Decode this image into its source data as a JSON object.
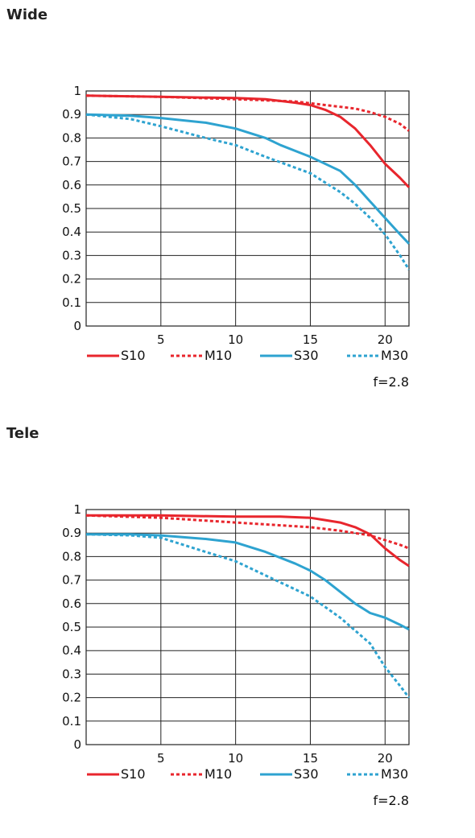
{
  "chart_data": [
    {
      "type": "line",
      "title": "Wide",
      "xlim": [
        0,
        21.6
      ],
      "ylim": [
        0,
        1
      ],
      "xticks": [
        "5",
        "10",
        "15",
        "20"
      ],
      "yticks": [
        "1",
        "0.9",
        "0.8",
        "0.7",
        "0.6",
        "0.5",
        "0.4",
        "0.3",
        "0.2",
        "0.1",
        "0"
      ],
      "grid": true,
      "legend_position": "bottom",
      "annotation": "f=2.8",
      "series": [
        {
          "name": "S10",
          "color": "#e8262d",
          "style": "solid",
          "x": [
            0,
            5,
            10,
            12,
            14,
            15,
            16,
            17,
            18,
            19,
            20,
            21,
            21.6
          ],
          "y": [
            0.98,
            0.975,
            0.97,
            0.965,
            0.95,
            0.94,
            0.92,
            0.89,
            0.84,
            0.77,
            0.69,
            0.63,
            0.59
          ]
        },
        {
          "name": "M10",
          "color": "#e8262d",
          "style": "dashed",
          "x": [
            0,
            5,
            10,
            14,
            16,
            18,
            19,
            20,
            21,
            21.6
          ],
          "y": [
            0.98,
            0.975,
            0.965,
            0.955,
            0.94,
            0.925,
            0.91,
            0.89,
            0.86,
            0.83
          ]
        },
        {
          "name": "S30",
          "color": "#2ea3d0",
          "style": "solid",
          "x": [
            0,
            3,
            5,
            8,
            10,
            12,
            13,
            15,
            17,
            18,
            19,
            20,
            21,
            21.6
          ],
          "y": [
            0.9,
            0.895,
            0.885,
            0.865,
            0.84,
            0.8,
            0.77,
            0.72,
            0.66,
            0.6,
            0.53,
            0.46,
            0.39,
            0.35
          ]
        },
        {
          "name": "M30",
          "color": "#2ea3d0",
          "style": "dashed",
          "x": [
            0,
            3,
            5,
            8,
            10,
            12,
            15,
            17,
            18,
            19,
            20,
            21,
            21.6
          ],
          "y": [
            0.9,
            0.88,
            0.85,
            0.8,
            0.77,
            0.72,
            0.65,
            0.57,
            0.52,
            0.46,
            0.39,
            0.3,
            0.24
          ]
        }
      ]
    },
    {
      "type": "line",
      "title": "Tele",
      "xlim": [
        0,
        21.6
      ],
      "ylim": [
        0,
        1
      ],
      "xticks": [
        "5",
        "10",
        "15",
        "20"
      ],
      "yticks": [
        "1",
        "0.9",
        "0.8",
        "0.7",
        "0.6",
        "0.5",
        "0.4",
        "0.3",
        "0.2",
        "0.1",
        "0"
      ],
      "grid": true,
      "legend_position": "bottom",
      "annotation": "f=2.8",
      "series": [
        {
          "name": "S10",
          "color": "#e8262d",
          "style": "solid",
          "x": [
            0,
            5,
            10,
            13,
            15,
            16,
            17,
            18,
            19,
            20,
            21,
            21.6
          ],
          "y": [
            0.975,
            0.975,
            0.97,
            0.97,
            0.965,
            0.955,
            0.945,
            0.925,
            0.895,
            0.835,
            0.785,
            0.76
          ]
        },
        {
          "name": "M10",
          "color": "#e8262d",
          "style": "dashed",
          "x": [
            0,
            5,
            10,
            15,
            17,
            19,
            20,
            21,
            21.6
          ],
          "y": [
            0.975,
            0.965,
            0.945,
            0.925,
            0.91,
            0.89,
            0.87,
            0.85,
            0.835
          ]
        },
        {
          "name": "S30",
          "color": "#2ea3d0",
          "style": "solid",
          "x": [
            0,
            3,
            5,
            8,
            10,
            12,
            14,
            15,
            16,
            17,
            18,
            19,
            20,
            21,
            21.6
          ],
          "y": [
            0.895,
            0.895,
            0.89,
            0.875,
            0.86,
            0.82,
            0.77,
            0.74,
            0.7,
            0.65,
            0.6,
            0.56,
            0.54,
            0.51,
            0.49
          ]
        },
        {
          "name": "M30",
          "color": "#2ea3d0",
          "style": "dashed",
          "x": [
            0,
            3,
            5,
            8,
            10,
            12,
            15,
            17,
            19,
            20,
            21,
            21.6
          ],
          "y": [
            0.895,
            0.89,
            0.88,
            0.82,
            0.78,
            0.72,
            0.63,
            0.54,
            0.43,
            0.33,
            0.25,
            0.2
          ]
        }
      ]
    }
  ]
}
